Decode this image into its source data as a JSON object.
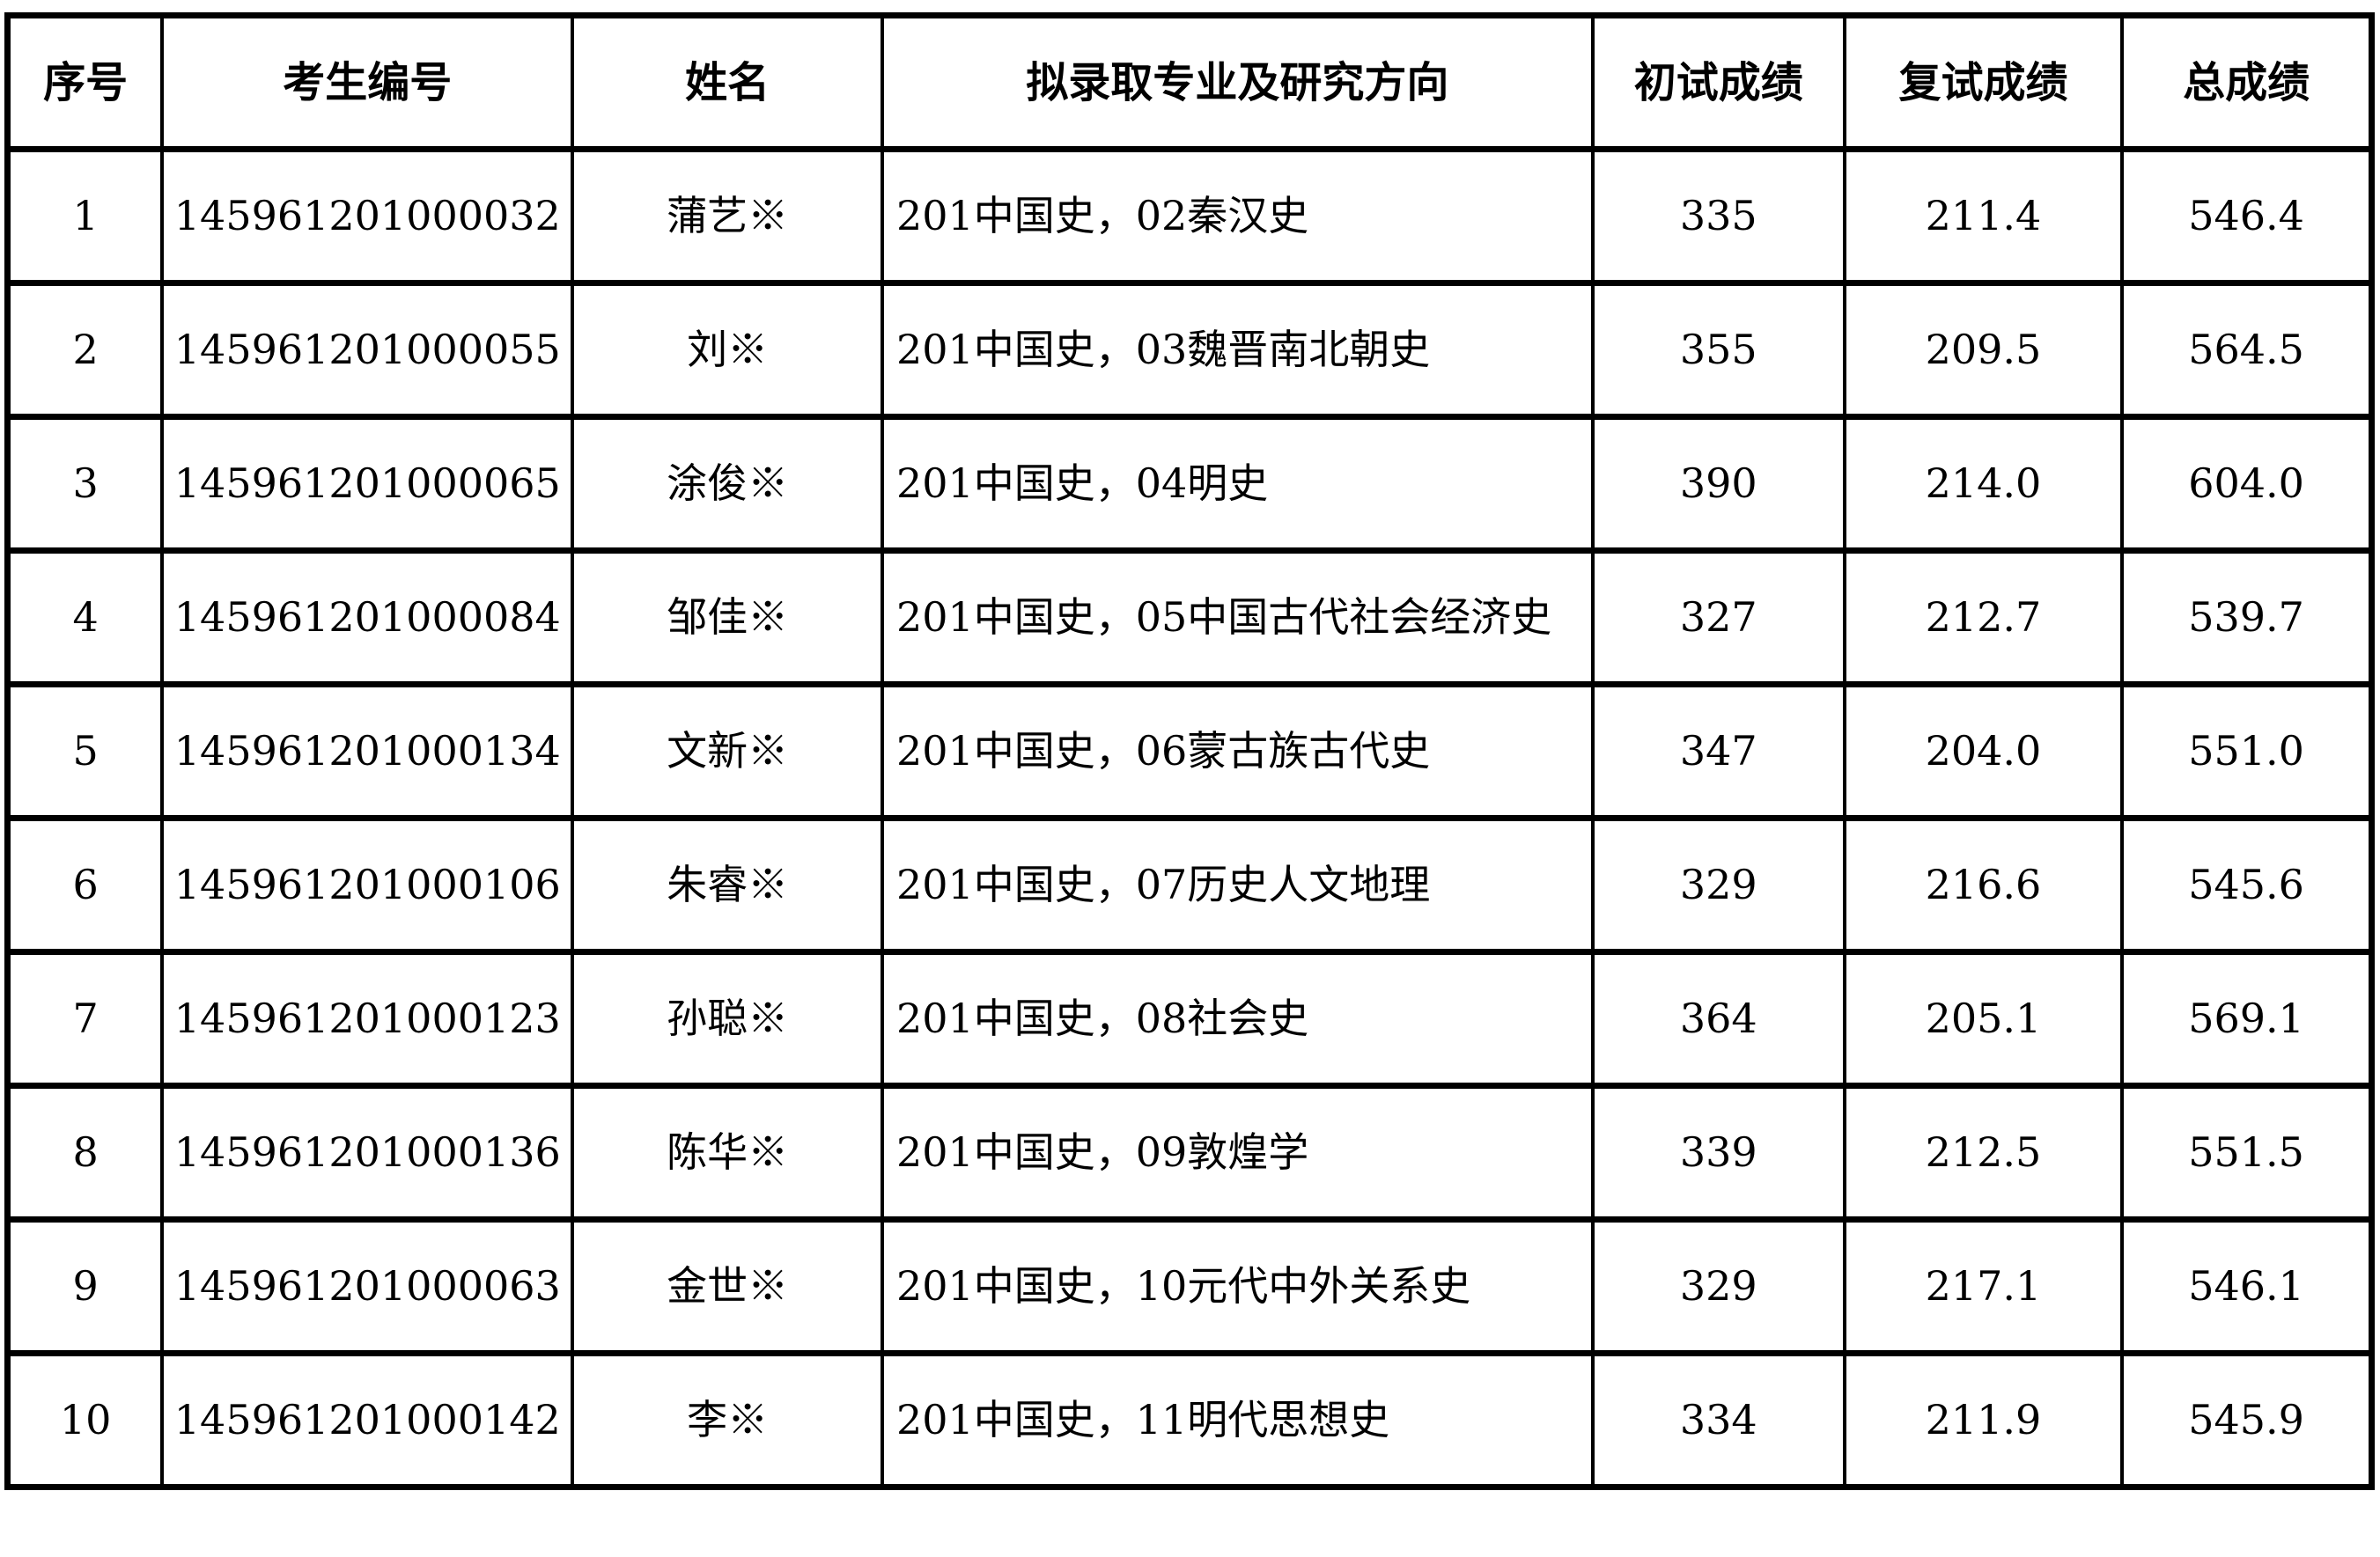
{
  "table": {
    "name": "admission-results-table",
    "columns": [
      "序号",
      "考生编号",
      "姓名",
      "拟录取专业及研究方向",
      "初试成绩",
      "复试成绩",
      "总成绩"
    ],
    "rows": [
      [
        "1",
        "145961201000032",
        "蒲艺※",
        "201中国史，02秦汉史",
        "335",
        "211.4",
        "546.4"
      ],
      [
        "2",
        "145961201000055",
        "刘※",
        "201中国史，03魏晋南北朝史",
        "355",
        "209.5",
        "564.5"
      ],
      [
        "3",
        "145961201000065",
        "涂俊※",
        "201中国史，04明史",
        "390",
        "214.0",
        "604.0"
      ],
      [
        "4",
        "145961201000084",
        "邹佳※",
        "201中国史，05中国古代社会经济史",
        "327",
        "212.7",
        "539.7"
      ],
      [
        "5",
        "145961201000134",
        "文新※",
        "201中国史，06蒙古族古代史",
        "347",
        "204.0",
        "551.0"
      ],
      [
        "6",
        "145961201000106",
        "朱睿※",
        "201中国史，07历史人文地理",
        "329",
        "216.6",
        "545.6"
      ],
      [
        "7",
        "145961201000123",
        "孙聪※",
        "201中国史，08社会史",
        "364",
        "205.1",
        "569.1"
      ],
      [
        "8",
        "145961201000136",
        "陈华※",
        "201中国史，09敦煌学",
        "339",
        "212.5",
        "551.5"
      ],
      [
        "9",
        "145961201000063",
        "金世※",
        "201中国史，10元代中外关系史",
        "329",
        "217.1",
        "546.1"
      ],
      [
        "10",
        "145961201000142",
        "李※",
        "201中国史，11明代思想史",
        "334",
        "211.9",
        "545.9"
      ]
    ],
    "colors": {
      "border": "#000000",
      "text": "#000000",
      "background": "#ffffff"
    }
  }
}
